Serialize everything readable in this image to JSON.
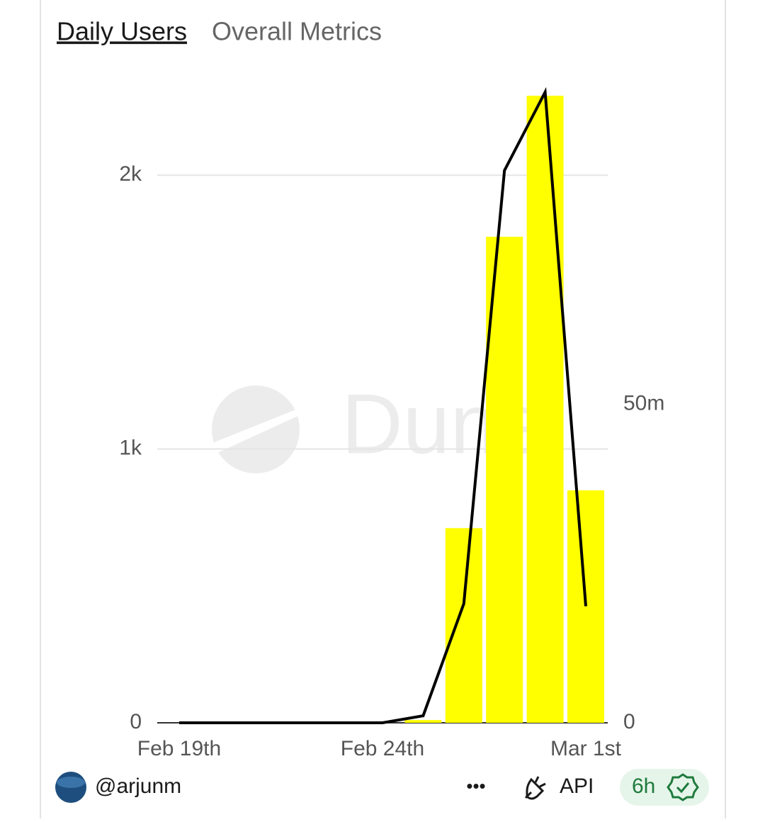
{
  "tabs": [
    "Daily Users",
    "Overall Metrics"
  ],
  "chart_data": {
    "type": "bar-line",
    "watermark": "Dune",
    "categories": [
      "Feb 19th",
      null,
      null,
      null,
      null,
      "Feb 24th",
      null,
      null,
      null,
      null,
      "Mar 1st"
    ],
    "series": [
      {
        "type": "bar",
        "color": "#ffff00",
        "axis": "y",
        "values": [
          0,
          0,
          0,
          0,
          0,
          0,
          10,
          711,
          1775,
          2290,
          849
        ]
      },
      {
        "type": "line",
        "color": "#000000",
        "axis": "y2",
        "values": [
          0,
          0,
          0,
          0,
          0,
          0,
          1100000,
          18700000,
          86700000,
          99000000,
          18300000
        ]
      }
    ],
    "ylim": [
      0,
      2350
    ],
    "yticks": [
      0,
      {
        "value": 1000,
        "label": "1k"
      },
      {
        "value": 2000,
        "label": "2k"
      }
    ],
    "y2lim": [
      0,
      101000000
    ],
    "y2ticks": [
      0,
      {
        "value": 50000000,
        "label": "50m"
      }
    ],
    "grid": true
  },
  "footer": {
    "user": "@arjunm",
    "more": "•••",
    "api": "API",
    "age": "6h"
  }
}
